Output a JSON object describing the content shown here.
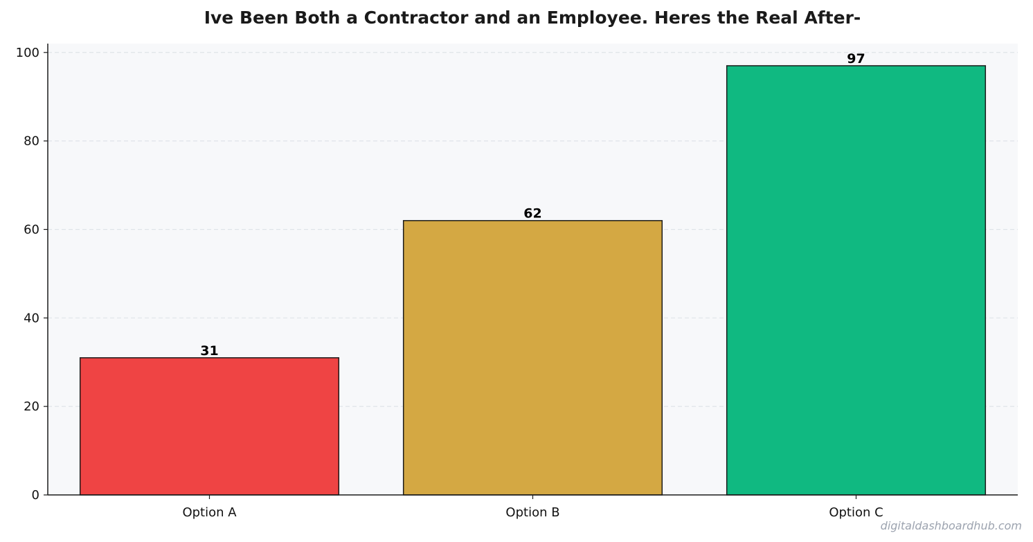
{
  "chart_data": {
    "type": "bar",
    "title": "Ive Been Both a Contractor and an Employee. Heres the Real After-",
    "categories": [
      "Option A",
      "Option B",
      "Option C"
    ],
    "values": [
      31,
      62,
      97
    ],
    "colors": [
      "#ef4444",
      "#d4a843",
      "#10b981"
    ],
    "xlabel": "",
    "ylabel": "",
    "ylim": [
      0,
      102
    ],
    "yticks": [
      0,
      20,
      40,
      60,
      80,
      100
    ],
    "grid": "y-dashed",
    "background": "#f7f8fa",
    "bar_edge_color": "#1a1a1a"
  },
  "watermark": "digitaldashboardhub.com"
}
